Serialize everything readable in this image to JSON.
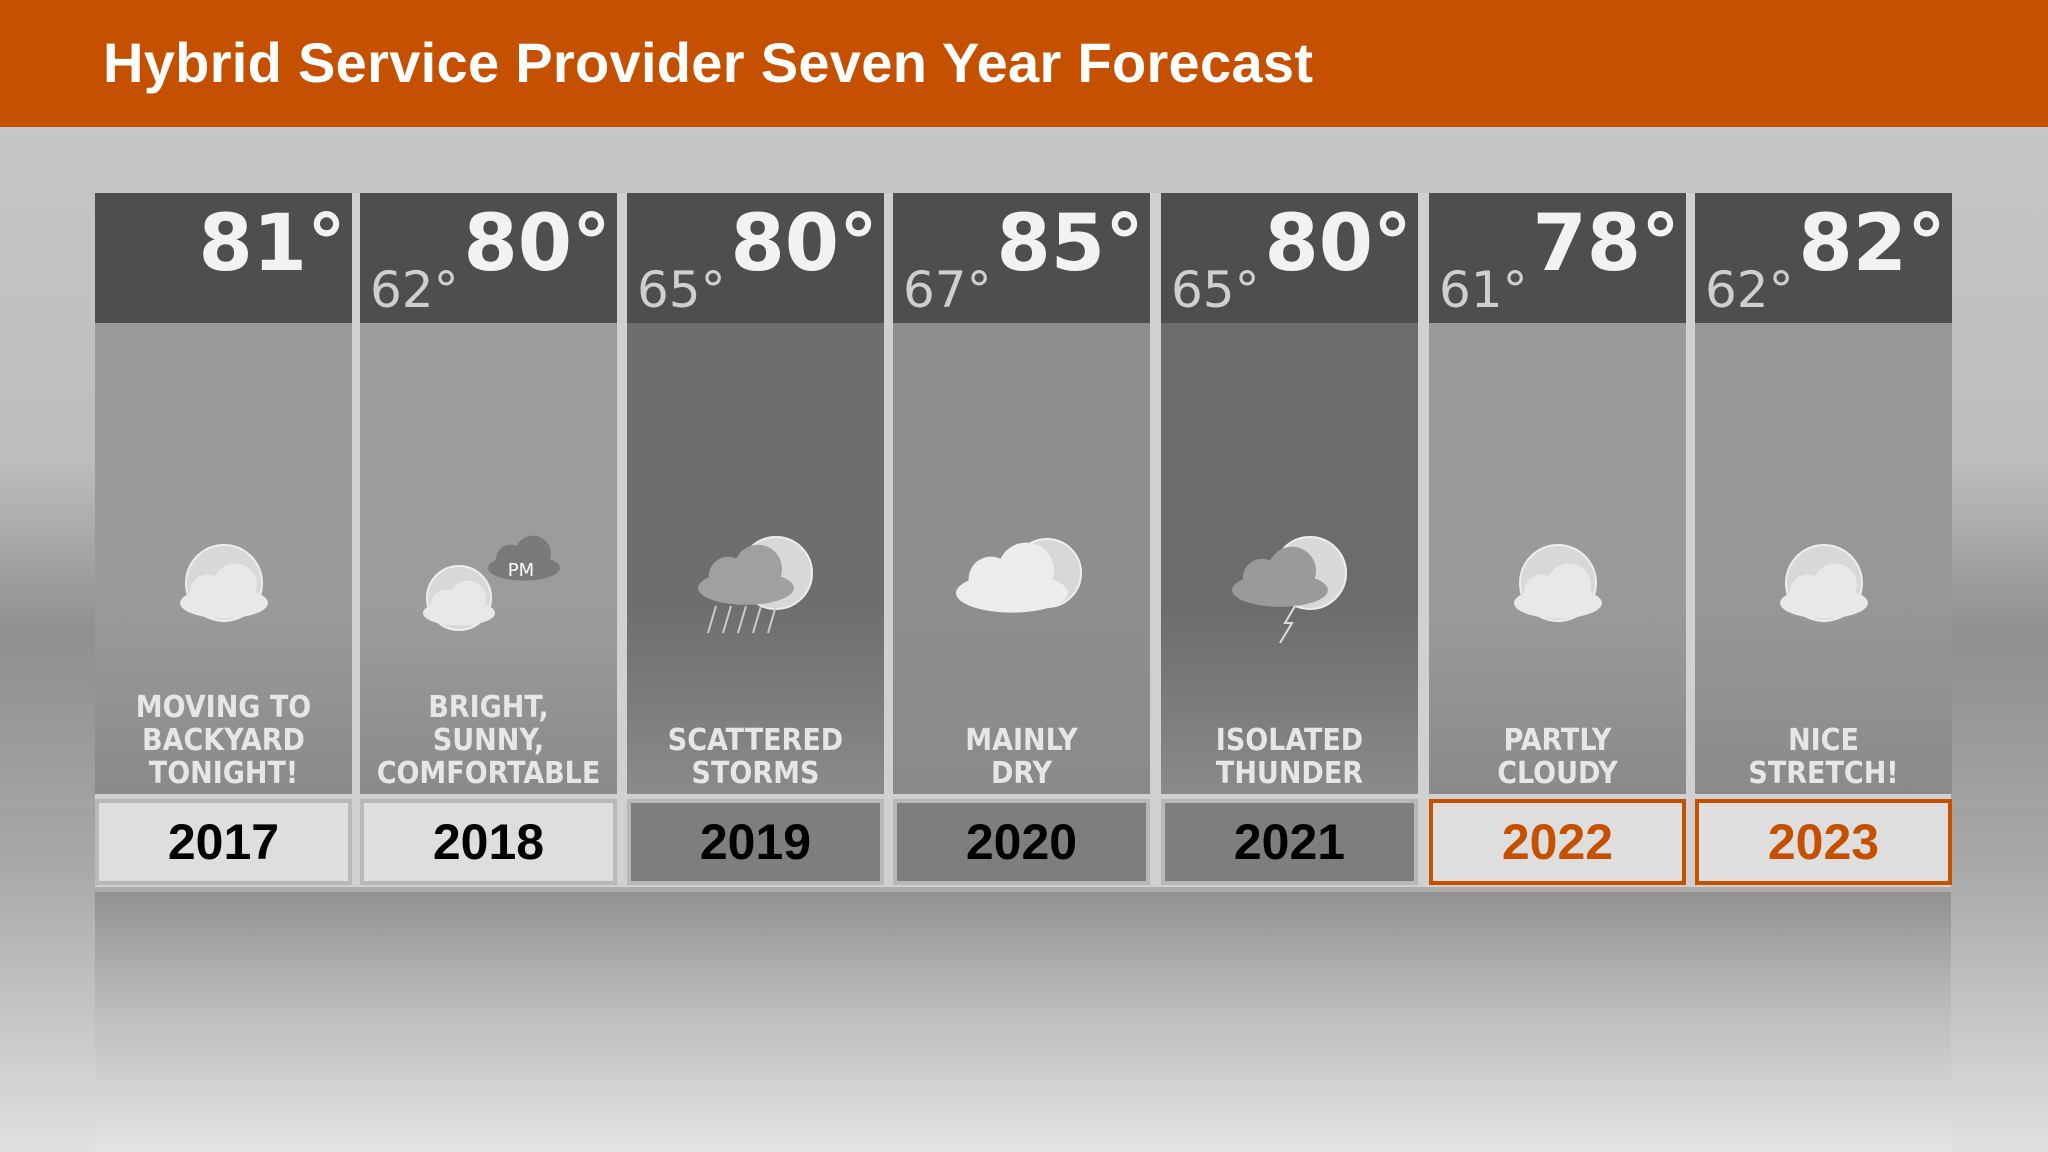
{
  "header": {
    "title": "Hybrid Service Provider Seven Year Forecast"
  },
  "colors": {
    "accent": "#c55100"
  },
  "days": [
    {
      "year": "2017",
      "high": "81°",
      "low": "",
      "desc": "MOVING TO\nBACKYARD\nTONIGHT!",
      "icon": "sun-with-cloud-icon",
      "style": "light",
      "bg": "#9a9a9a"
    },
    {
      "year": "2018",
      "high": "80°",
      "low": "62°",
      "desc": "BRIGHT,\nSUNNY,\nCOMFORTABLE",
      "icon": "sun-and-pm-storm-icon",
      "pm": "PM",
      "style": "light",
      "bg": "#9c9c9c"
    },
    {
      "year": "2019",
      "high": "80°",
      "low": "65°",
      "desc": "SCATTERED\nSTORMS",
      "icon": "storm-rain-icon",
      "style": "dark",
      "bg": "#6e6e6e"
    },
    {
      "year": "2020",
      "high": "85°",
      "low": "67°",
      "desc": "MAINLY\nDRY",
      "icon": "partly-cloudy-icon",
      "style": "dark",
      "bg": "#8e8e8e"
    },
    {
      "year": "2021",
      "high": "80°",
      "low": "65°",
      "desc": "ISOLATED\nTHUNDER",
      "icon": "thunderstorm-icon",
      "style": "dark",
      "bg": "#6c6c6c"
    },
    {
      "year": "2022",
      "high": "78°",
      "low": "61°",
      "desc": "PARTLY\nCLOUDY",
      "icon": "sun-with-cloud-icon",
      "style": "hl",
      "bg": "#9a9a9a"
    },
    {
      "year": "2023",
      "high": "82°",
      "low": "62°",
      "desc": "NICE\nSTRETCH!",
      "icon": "sun-with-cloud-icon",
      "style": "hl",
      "bg": "#979797"
    }
  ]
}
